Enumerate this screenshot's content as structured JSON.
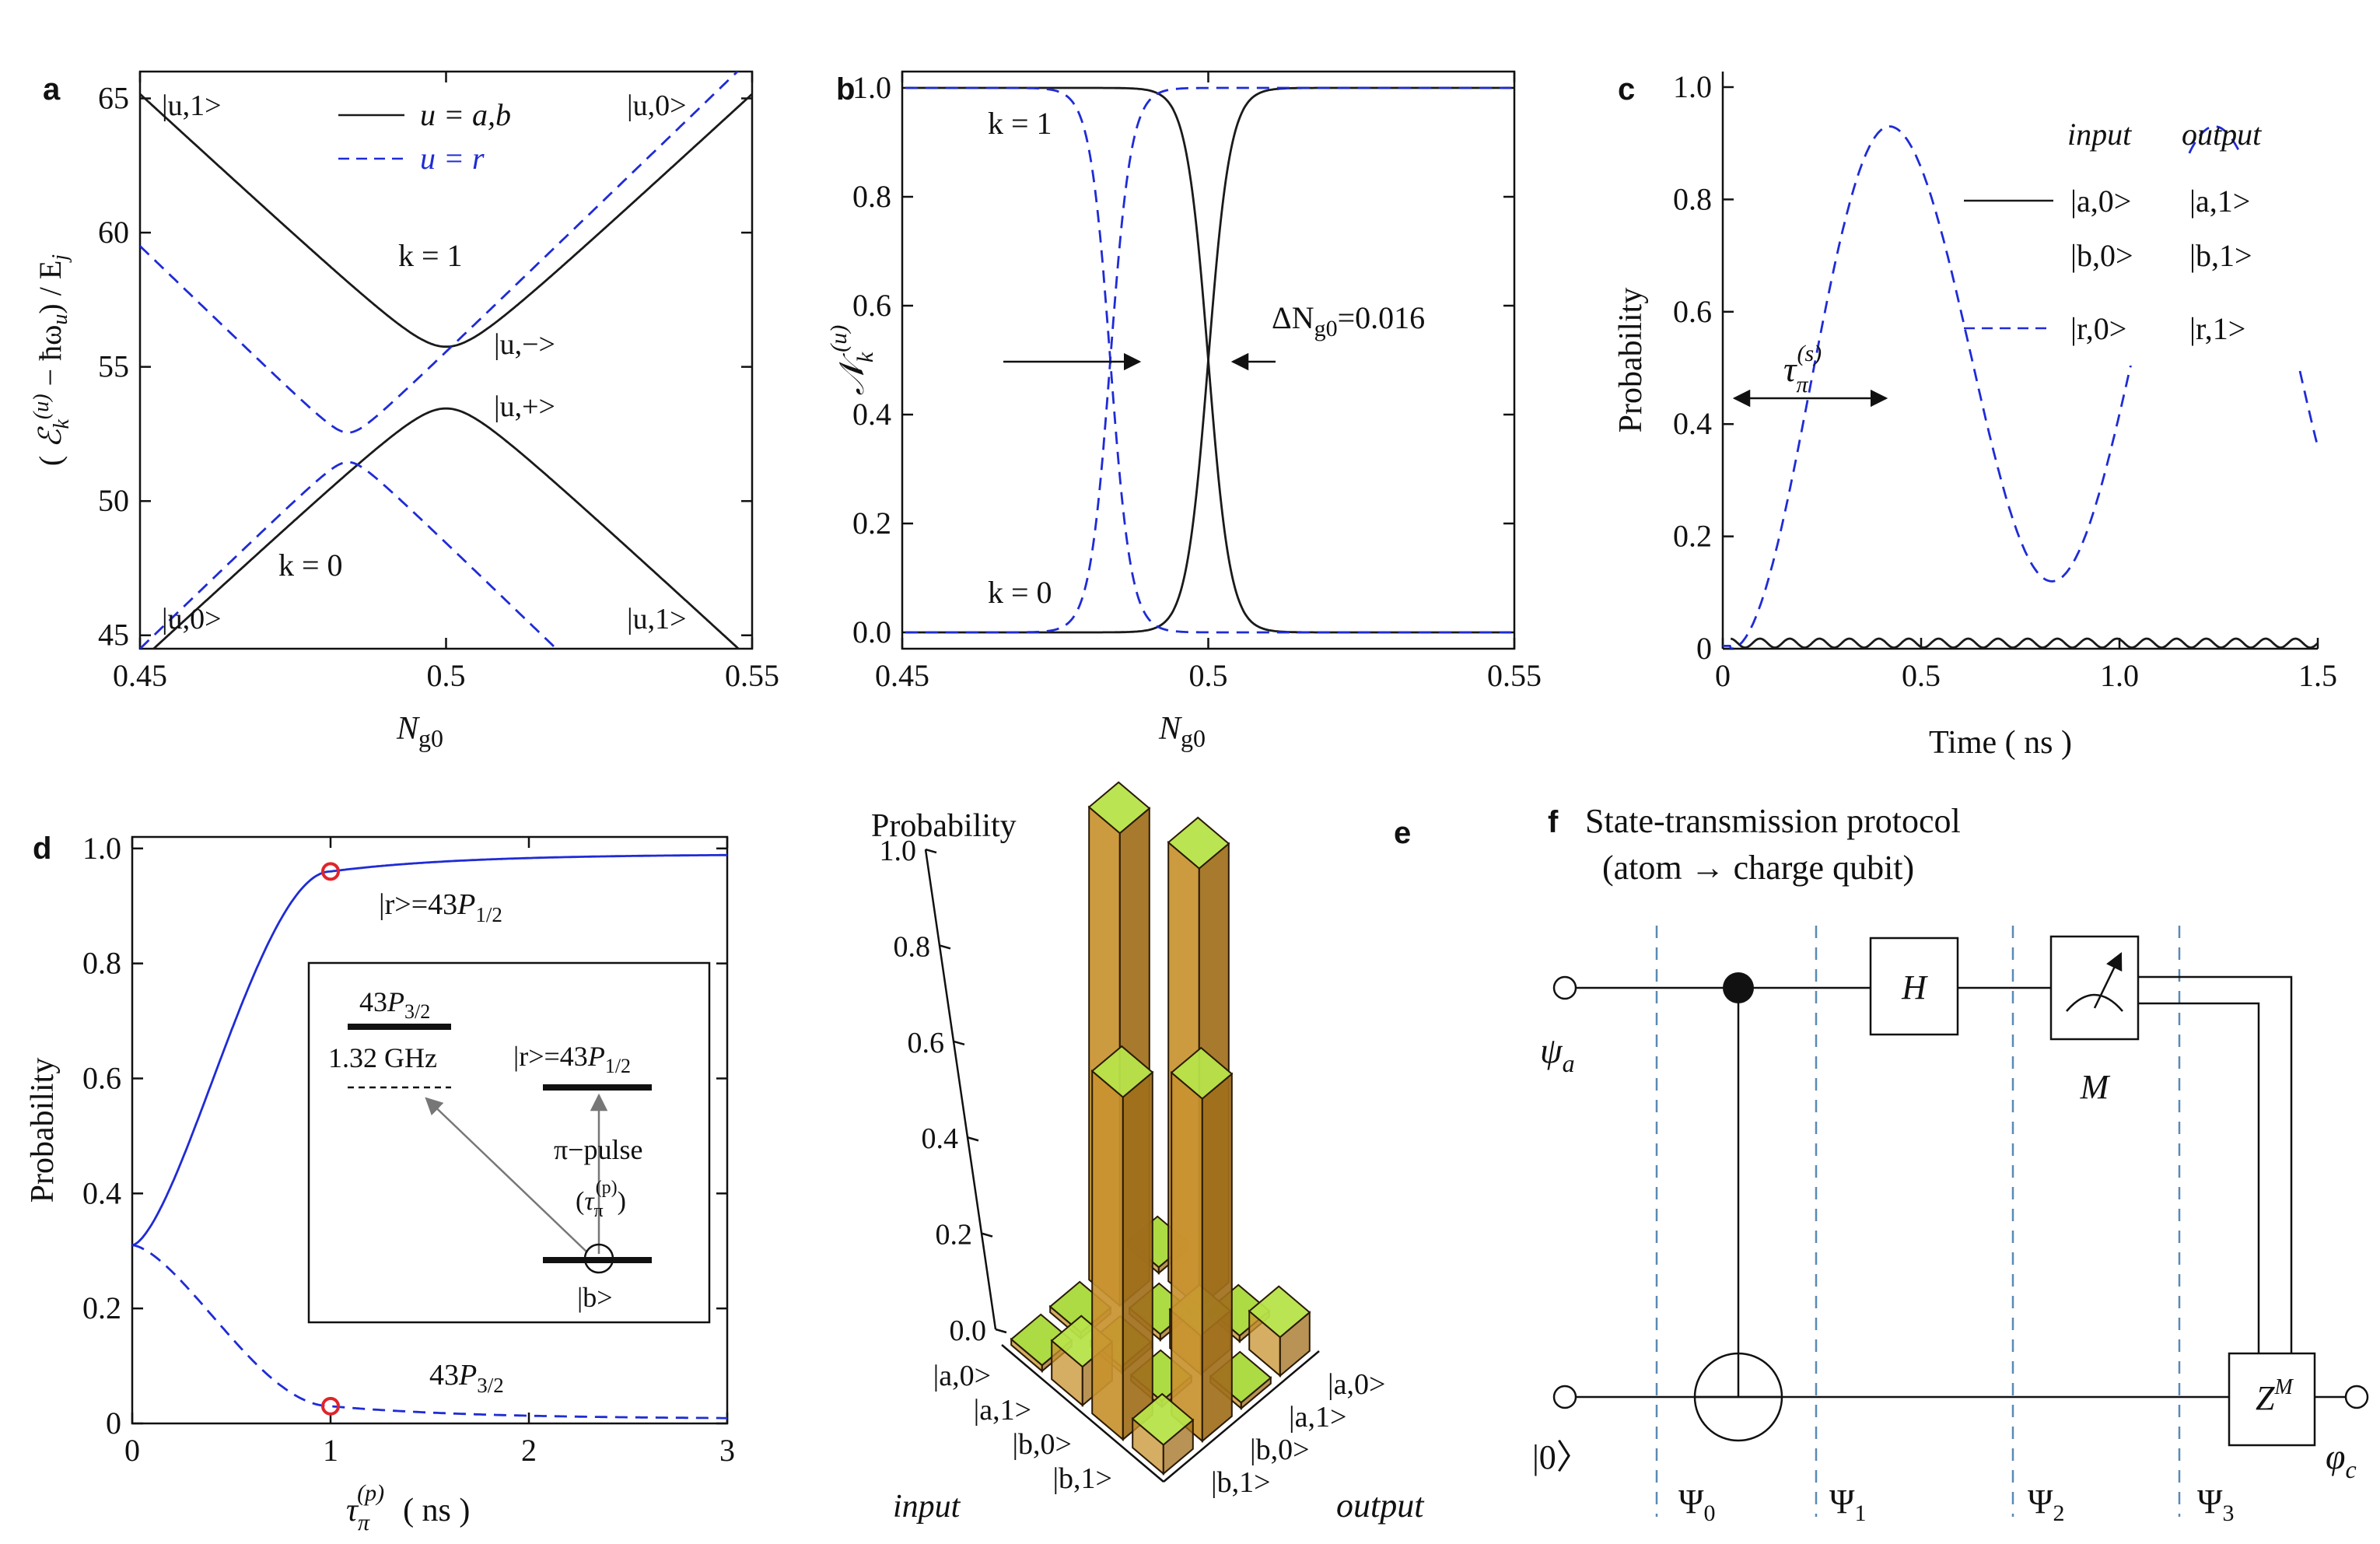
{
  "colors": {
    "black": "#1a1a1a",
    "blue": "#1f2bd6",
    "red": "#e0242b",
    "bar_front": "#c8932f",
    "bar_side": "#a06f1c",
    "bar_top": "#b7e34a",
    "tile": "#a8d93a",
    "grid": "#5a8ab4"
  },
  "chart_data": [
    {
      "panel": "a",
      "type": "line",
      "xlabel": "N",
      "xlabel_sub": "g0",
      "ylabel_sym": "ℰ",
      "ylabel_sub": "k",
      "ylabel_sup": "(u)",
      "ylabel_pre": "(",
      "ylabel_mid": " − ħω",
      "ylabel_mid_sub": "u",
      "ylabel_post": ") / E",
      "ylabel_post_sub": "j",
      "xlim": [
        0.45,
        0.55
      ],
      "ylim": [
        44.5,
        66
      ],
      "xticks": [
        0.45,
        0.5,
        0.55
      ],
      "xtick_labels": [
        "0.45",
        "0.5",
        "0.55"
      ],
      "yticks": [
        45,
        50,
        55,
        60,
        65
      ],
      "ytick_labels": [
        "45",
        "50",
        "55",
        "60",
        "65"
      ],
      "legend": [
        {
          "label": "u = a,b",
          "style": "solid",
          "color": "black"
        },
        {
          "label": "u = r",
          "style": "dashed",
          "color": "blue"
        }
      ],
      "series": [
        {
          "name": "u=a,b upper (k=1)",
          "style": "solid",
          "color": "black",
          "center": 0.5,
          "mid": 54.6,
          "slope": 210,
          "gap": 1.15,
          "sign": 1
        },
        {
          "name": "u=a,b lower (k=0)",
          "style": "solid",
          "color": "black",
          "center": 0.5,
          "mid": 54.6,
          "slope": 210,
          "gap": 1.15,
          "sign": -1
        },
        {
          "name": "u=r upper",
          "style": "dashed",
          "color": "blue",
          "center": 0.484,
          "mid": 52.0,
          "slope": 220,
          "gap": 0.55,
          "sign": 1
        },
        {
          "name": "u=r lower",
          "style": "dashed",
          "color": "blue",
          "center": 0.484,
          "mid": 52.0,
          "slope": 220,
          "gap": 0.55,
          "sign": -1
        }
      ],
      "annotations": [
        "|u,1>",
        "|u,0>",
        "k = 1",
        "|u,−>",
        "|u,+>",
        "k = 0",
        "|u,0>",
        "|u,1>"
      ]
    },
    {
      "panel": "b",
      "type": "line",
      "xlabel": "N",
      "xlabel_sub": "g0",
      "ylabel_sym": "𝒩",
      "ylabel_sub": "k",
      "ylabel_sup": "(u)",
      "xlim": [
        0.45,
        0.55
      ],
      "ylim": [
        -0.03,
        1.03
      ],
      "xticks": [
        0.45,
        0.5,
        0.55
      ],
      "xtick_labels": [
        "0.45",
        "0.5",
        "0.55"
      ],
      "yticks": [
        0.0,
        0.2,
        0.4,
        0.6,
        0.8,
        1.0
      ],
      "ytick_labels": [
        "0.0",
        "0.2",
        "0.4",
        "0.6",
        "0.8",
        "1.0"
      ],
      "series": [
        {
          "name": "solid k=1",
          "style": "solid",
          "color": "black",
          "center": 0.5,
          "width": 0.0018,
          "rising": false
        },
        {
          "name": "solid k=0",
          "style": "solid",
          "color": "black",
          "center": 0.5,
          "width": 0.0018,
          "rising": true
        },
        {
          "name": "dashed k=1",
          "style": "dashed",
          "color": "blue",
          "center": 0.484,
          "width": 0.0017,
          "rising": false
        },
        {
          "name": "dashed k=0",
          "style": "dashed",
          "color": "blue",
          "center": 0.484,
          "width": 0.0017,
          "rising": true
        }
      ],
      "annotations": [
        "k = 1",
        "k = 0",
        "ΔN",
        "g0",
        "=0.016"
      ]
    },
    {
      "panel": "c",
      "type": "line",
      "xlabel": "Time   ( ns )",
      "ylabel": "Probability",
      "xlim": [
        0,
        1.5
      ],
      "ylim": [
        0,
        1.0
      ],
      "xticks": [
        0,
        0.5,
        1.0,
        1.5
      ],
      "xtick_labels": [
        "0",
        "0.5",
        "1.0",
        "1.5"
      ],
      "yticks": [
        0,
        0.2,
        0.4,
        0.6,
        0.8,
        1.0
      ],
      "ytick_labels": [
        "0",
        "0.2",
        "0.4",
        "0.6",
        "0.8",
        "1.0"
      ],
      "legend_header": [
        "input",
        "output"
      ],
      "legend_rows": [
        [
          "|a,0>",
          "|a,1>"
        ],
        [
          "|b,0>",
          "|b,1>"
        ],
        [
          "|r,0>",
          "|r,1>"
        ]
      ],
      "series": [
        {
          "name": "|a,0>,|b,0> solid",
          "style": "solid",
          "color": "black",
          "mean": 0.01,
          "amp": 0.008,
          "period": 0.075
        },
        {
          "name": "|r,0> dashed",
          "style": "dashed",
          "color": "blue",
          "rise_start": 0.02,
          "peak_t": 0.42,
          "peak": 0.93,
          "trough_t": 0.83,
          "trough": 0.12
        }
      ],
      "annotation": {
        "symbol": "τ",
        "sub": "π",
        "sup": "(s)"
      }
    },
    {
      "panel": "d",
      "type": "line",
      "xlabel_sym": "τ",
      "xlabel_sub": "π",
      "xlabel_sup": "(p)",
      "xlabel_units": "( ns )",
      "ylabel": "Probability",
      "xlim": [
        0,
        3
      ],
      "ylim": [
        0,
        1.02
      ],
      "xticks": [
        0,
        1,
        2,
        3
      ],
      "xtick_labels": [
        "0",
        "1",
        "2",
        "3"
      ],
      "yticks": [
        0,
        0.2,
        0.4,
        0.6,
        0.8,
        1.0
      ],
      "ytick_labels": [
        "0",
        "0.2",
        "0.4",
        "0.6",
        "0.8",
        "1.0"
      ],
      "series": [
        {
          "name": "|r>=43P1/2",
          "style": "solid",
          "color": "blue",
          "start": 0.31,
          "plateau": 0.96,
          "final": 0.99
        },
        {
          "name": "43P3/2",
          "style": "dashed",
          "color": "blue",
          "start": 0.31,
          "at1": 0.03,
          "final": 0.008
        }
      ],
      "markers": [
        {
          "x": 1,
          "y": 0.96
        },
        {
          "x": 1,
          "y": 0.03
        }
      ],
      "labels": {
        "r_pre": "|r>=43",
        "r_P": "P",
        "r_sub": "1/2",
        "p32_pre": "43",
        "p32_P": "P",
        "p32_sub": "3/2"
      },
      "inset": {
        "level_top": "43",
        "P": "P",
        "sub_top": "3/2",
        "freq": "1.32 GHz",
        "r_pre": "|r>=43",
        "sub_r": "1/2",
        "pulse": "π−pulse",
        "tau": "τ",
        "tau_sub": "π",
        "tau_sup": "(p)",
        "ground": "|b>"
      }
    },
    {
      "panel": "e",
      "type": "bar3d",
      "zlabel": "Probability",
      "zticks": [
        0.0,
        0.2,
        0.4,
        0.6,
        0.8,
        1.0
      ],
      "ztick_labels": [
        "0.0",
        "0.2",
        "0.4",
        "0.6",
        "0.8",
        "1.0"
      ],
      "input_states": [
        "|a,0>",
        "|a,1>",
        "|b,0>",
        "|b,1>"
      ],
      "output_states": [
        "|a,0>",
        "|a,1>",
        "|b,0>",
        "|b,1>"
      ],
      "input_label": "input",
      "output_label": "output",
      "matrix": [
        [
          0.0,
          0.98,
          0.0,
          0.0
        ],
        [
          0.91,
          0.0,
          0.0,
          0.08
        ],
        [
          0.0,
          0.08,
          0.0,
          0.71
        ],
        [
          0.08,
          0.0,
          0.71,
          0.06
        ]
      ]
    }
  ],
  "panel_f": {
    "title": "State-transmission protocol",
    "subtitle": "(atom → charge qubit)",
    "input_top": "ψ",
    "input_top_sub": "a",
    "input_bottom": "|0〉",
    "output": "φ",
    "output_sub": "c",
    "gate_h": "H",
    "meter": "M",
    "gate_z": "Z",
    "gate_z_sup": "M",
    "stages": [
      {
        "sym": "Ψ",
        "sub": "0"
      },
      {
        "sym": "Ψ",
        "sub": "1"
      },
      {
        "sym": "Ψ",
        "sub": "2"
      },
      {
        "sym": "Ψ",
        "sub": "3"
      }
    ]
  },
  "panel_labels": [
    "a",
    "b",
    "c",
    "d",
    "e",
    "f"
  ]
}
